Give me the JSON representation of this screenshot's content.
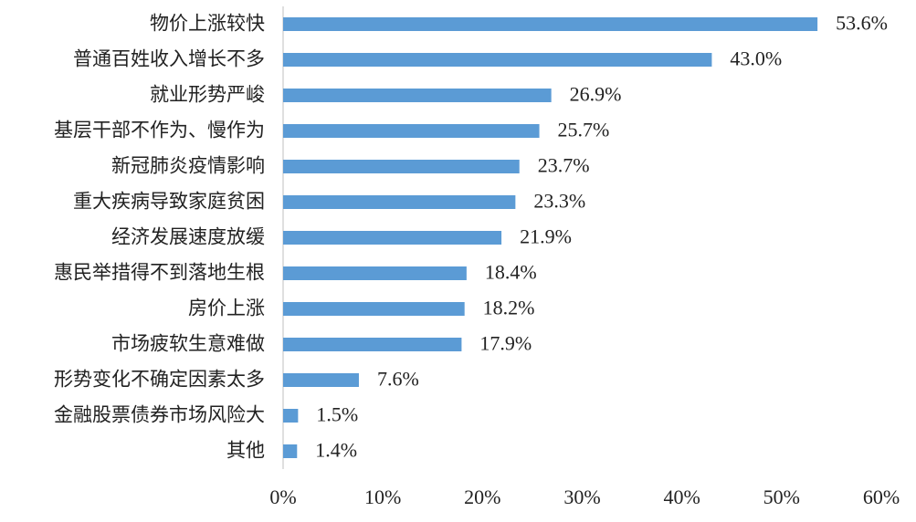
{
  "chart_data": {
    "type": "bar",
    "orientation": "horizontal",
    "categories": [
      "物价上涨较快",
      "普通百姓收入增长不多",
      "就业形势严峻",
      "基层干部不作为、慢作为",
      "新冠肺炎疫情影响",
      "重大疾病导致家庭贫困",
      "经济发展速度放缓",
      "惠民举措得不到落地生根",
      "房价上涨",
      "市场疲软生意难做",
      "形势变化不确定因素太多",
      "金融股票债券市场风险大",
      "其他"
    ],
    "values": [
      53.6,
      43.0,
      26.9,
      25.7,
      23.7,
      23.3,
      21.9,
      18.4,
      18.2,
      17.9,
      7.6,
      1.5,
      1.4
    ],
    "value_labels": [
      "53.6%",
      "43.0%",
      "26.9%",
      "25.7%",
      "23.7%",
      "23.3%",
      "21.9%",
      "18.4%",
      "18.2%",
      "17.9%",
      "7.6%",
      "1.5%",
      "1.4%"
    ],
    "color": "#5b9bd5",
    "xlim": [
      0,
      60
    ],
    "xticks": [
      {
        "value": 0,
        "label": "0%"
      },
      {
        "value": 10,
        "label": "10%"
      },
      {
        "value": 20,
        "label": "20%"
      },
      {
        "value": 30,
        "label": "30%"
      },
      {
        "value": 40,
        "label": "40%"
      },
      {
        "value": 50,
        "label": "50%"
      },
      {
        "value": 60,
        "label": "60%"
      }
    ],
    "grid": false
  }
}
